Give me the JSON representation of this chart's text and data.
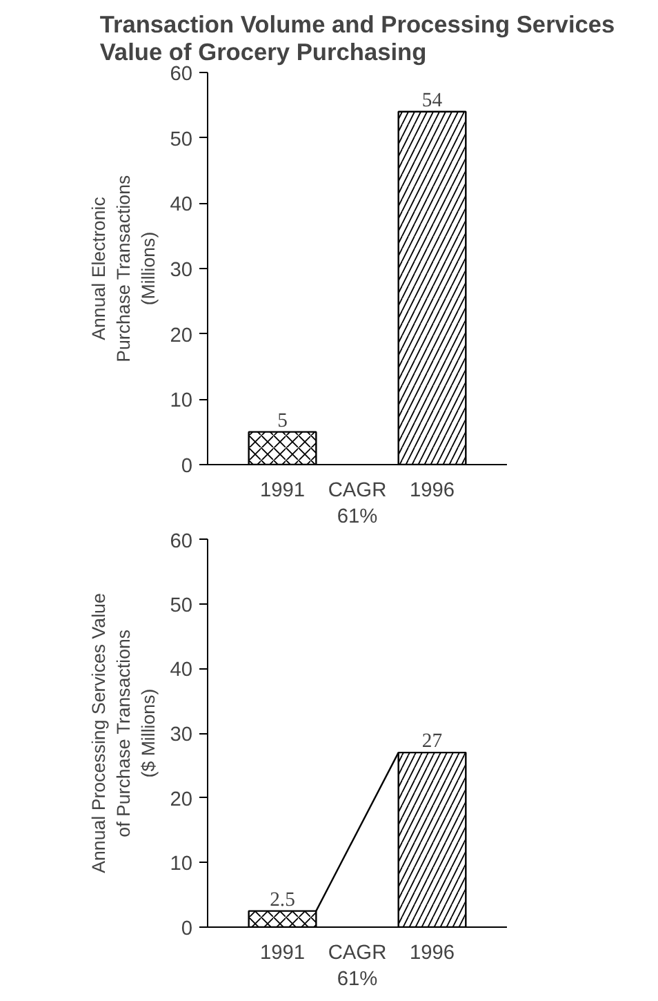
{
  "chart_data": [
    {
      "type": "bar",
      "title": "Transaction Volume and Processing Services\nValue of Grocery Purchasing",
      "ylabel": "Annual Electronic\nPurchase Transactions\n(Millions)",
      "categories": [
        "1991",
        "1996"
      ],
      "values": [
        5,
        54
      ],
      "colors": [
        "#000000",
        "#000000"
      ],
      "ylim": [
        0,
        60
      ],
      "yticks": [
        0,
        10,
        20,
        30,
        40,
        50,
        60
      ],
      "data_labels": true,
      "annotations": [
        "CAGR\n61%"
      ]
    },
    {
      "type": "bar",
      "ylabel": "Annual Processing Services Value\nof Purchase Transactions\n($ Millions)",
      "categories": [
        "1991",
        "1996"
      ],
      "values": [
        2.5,
        27
      ],
      "colors": [
        "#000000",
        "#000000"
      ],
      "ylim": [
        0,
        60
      ],
      "yticks": [
        0,
        10,
        20,
        30,
        40,
        50,
        60
      ],
      "data_labels": true,
      "annotations": [
        "CAGR\n61%"
      ]
    }
  ]
}
